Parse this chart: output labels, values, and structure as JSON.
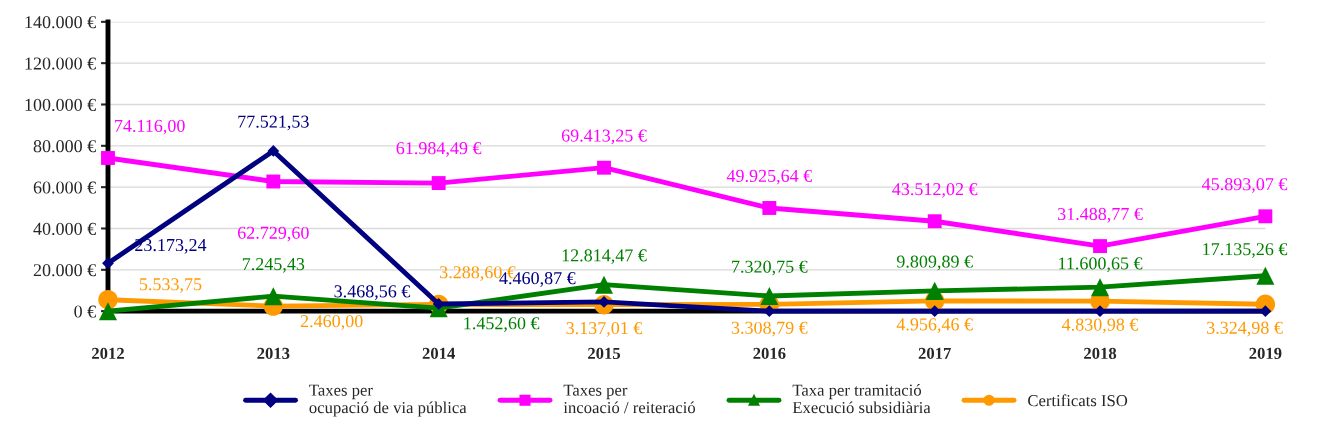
{
  "chart_data": {
    "type": "line",
    "categories": [
      "2012",
      "2013",
      "2014",
      "2015",
      "2016",
      "2017",
      "2018",
      "2019"
    ],
    "ylim": [
      0,
      140000
    ],
    "yticks": [
      {
        "value": 0,
        "label": "0 €"
      },
      {
        "value": 20000,
        "label": "20.000 €"
      },
      {
        "value": 40000,
        "label": "40.000 €"
      },
      {
        "value": 60000,
        "label": "60.000 €"
      },
      {
        "value": 80000,
        "label": "80.000 €"
      },
      {
        "value": 100000,
        "label": "100.000 €"
      },
      {
        "value": 120000,
        "label": "120.000 €"
      },
      {
        "value": 140000,
        "label": "140.000 €"
      }
    ],
    "grid": "y",
    "legend": "bottom",
    "series": [
      {
        "name": "Taxes per\nocupació de via pública",
        "color": "#000080",
        "marker": "diamond",
        "values": [
          23173.24,
          77521.53,
          3468.56,
          4460.87,
          0,
          0,
          0,
          0
        ],
        "value_labels": [
          "23.173,24",
          "77.521,53",
          "3.468,56 €",
          "4.460,87 €",
          null,
          null,
          null,
          null
        ]
      },
      {
        "name": "Taxes per\nincoació / reiteració",
        "color": "#ff00ff",
        "marker": "square",
        "values": [
          74116.0,
          62729.6,
          61984.49,
          69413.25,
          49925.64,
          43512.02,
          31488.77,
          45893.07
        ],
        "value_labels": [
          "74.116,00",
          "62.729,60",
          "61.984,49 €",
          "69.413,25 €",
          "49.925,64 €",
          "43.512,02 €",
          "31.488,77 €",
          "45.893,07 €"
        ]
      },
      {
        "name": "Taxa per tramitació\nExecució subsidiària",
        "color": "#008000",
        "marker": "triangle",
        "values": [
          0,
          7245.43,
          1452.6,
          12814.47,
          7320.75,
          9809.89,
          11600.65,
          17135.26
        ],
        "value_labels": [
          null,
          "7.245,43",
          "1.452,60 €",
          "12.814,47 €",
          "7.320,75 €",
          "9.809,89 €",
          "11.600,65 €",
          "17.135,26 €"
        ]
      },
      {
        "name": "Certificats ISO",
        "color": "#ff9900",
        "marker": "circle",
        "values": [
          5533.75,
          2460.0,
          3288.6,
          3137.01,
          3308.79,
          4956.46,
          4830.98,
          3324.98
        ],
        "value_labels": [
          "5.533,75",
          "2.460,00",
          "3.288,60 €",
          "3.137,01 €",
          "3.308,79 €",
          "4.956,46 €",
          "4.830,98 €",
          "3.324,98 €"
        ]
      }
    ]
  }
}
